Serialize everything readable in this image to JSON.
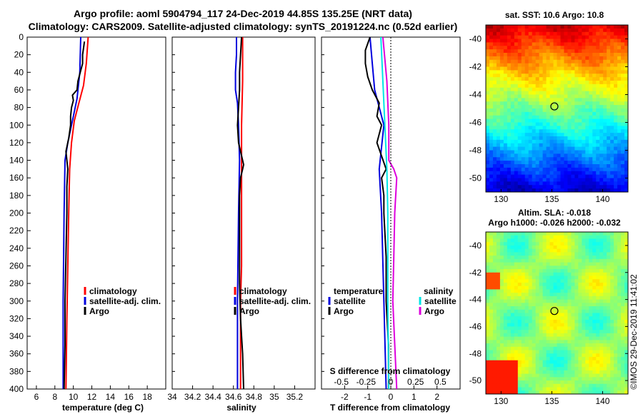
{
  "titles": {
    "line1": "Argo profile: aoml 5904794_117 24-Dec-2019 44.85S 135.25E (NRT data)",
    "line2": "Climatology: CARS2009. Satellite-adjusted climatology: synTS_20191224.nc (0.52d earlier)"
  },
  "timestamp": "©IMOS 29-Dec-2019 11:41:02",
  "colors": {
    "climatology": "#ff0000",
    "satellite": "#0000dd",
    "argo": "#000000",
    "sal_satellite": "#00e5e5",
    "sal_argo": "#dd00dd"
  },
  "chart_data": [
    {
      "type": "line",
      "id": "temperature",
      "xlabel": "temperature (deg C)",
      "ylabel": "depth",
      "xlim": [
        5,
        20
      ],
      "ylim": [
        400,
        0
      ],
      "xticks": [
        6,
        8,
        10,
        12,
        14,
        16,
        18
      ],
      "yticks": [
        0,
        20,
        40,
        60,
        80,
        100,
        120,
        140,
        160,
        180,
        200,
        220,
        240,
        260,
        280,
        300,
        320,
        340,
        360,
        380,
        400
      ],
      "legend": [
        "climatology",
        "satellite-adj. clim.",
        "Argo"
      ],
      "series": [
        {
          "name": "climatology",
          "color": "#ff0000",
          "depth": [
            0,
            30,
            55,
            75,
            95,
            120,
            150,
            200,
            260,
            320,
            400
          ],
          "values": [
            11.6,
            11.4,
            11.1,
            10.6,
            10.1,
            9.8,
            9.6,
            9.5,
            9.4,
            9.3,
            9.2
          ]
        },
        {
          "name": "satellite-adj. clim.",
          "color": "#0000dd",
          "depth": [
            0,
            40,
            70,
            95,
            120,
            140,
            200,
            300,
            400
          ],
          "values": [
            10.8,
            10.7,
            10.4,
            9.9,
            9.4,
            9.1,
            9.0,
            8.9,
            8.9
          ]
        },
        {
          "name": "Argo",
          "color": "#000000",
          "depth": [
            5,
            20,
            30,
            42,
            50,
            60,
            66,
            72,
            80,
            90,
            100,
            115,
            130,
            150,
            170,
            200,
            250,
            300,
            350,
            400
          ],
          "values": [
            11.2,
            11.0,
            11.0,
            10.7,
            10.5,
            10.4,
            9.9,
            10.0,
            9.8,
            9.7,
            9.7,
            9.5,
            9.2,
            9.4,
            9.3,
            9.3,
            9.2,
            9.1,
            9.1,
            9.0
          ]
        }
      ]
    },
    {
      "type": "line",
      "id": "salinity",
      "xlabel": "salinity",
      "xlim": [
        34.0,
        35.4
      ],
      "ylim": [
        400,
        0
      ],
      "xticks": [
        34,
        34.2,
        34.4,
        34.6,
        34.8,
        35,
        35.2
      ],
      "xticklabels": [
        "34",
        "34.2",
        "34.4",
        "34.6",
        "34.8",
        "35",
        "35.2"
      ],
      "legend": [
        "climatology",
        "satellite-adj. clim.",
        "Argo"
      ],
      "series": [
        {
          "name": "climatology",
          "color": "#ff0000",
          "depth": [
            0,
            50,
            100,
            150,
            200,
            260,
            300,
            350,
            400
          ],
          "values": [
            34.69,
            34.69,
            34.68,
            34.68,
            34.68,
            34.68,
            34.67,
            34.67,
            34.67
          ]
        },
        {
          "name": "satellite-adj. clim.",
          "color": "#0000dd",
          "depth": [
            0,
            20,
            40,
            60,
            75,
            100,
            140,
            200,
            300,
            400
          ],
          "values": [
            34.63,
            34.63,
            34.62,
            34.62,
            34.64,
            34.65,
            34.66,
            34.65,
            34.64,
            34.64
          ]
        },
        {
          "name": "Argo",
          "color": "#000000",
          "depth": [
            0,
            20,
            40,
            60,
            80,
            100,
            120,
            130,
            145,
            150,
            160,
            180,
            220,
            280,
            320,
            340,
            360,
            400
          ],
          "values": [
            34.68,
            34.67,
            34.66,
            34.66,
            34.65,
            34.64,
            34.65,
            34.67,
            34.7,
            34.69,
            34.67,
            34.66,
            34.66,
            34.66,
            34.67,
            34.68,
            34.69,
            34.7
          ]
        }
      ]
    },
    {
      "type": "line",
      "id": "difference",
      "xlabel": "T difference from climatology",
      "xlim": [
        -3,
        3
      ],
      "ylim": [
        400,
        0
      ],
      "xticks": [
        -2,
        -1,
        0,
        1,
        2
      ],
      "top_axis": {
        "label": "S difference from climatology",
        "ticks": [
          -0.5,
          -0.25,
          0,
          0.25,
          0.5
        ],
        "ticklabels": [
          "-0.5",
          "-0.25",
          "0",
          "0.25",
          "0.5"
        ],
        "range": [
          -0.7,
          0.7
        ]
      },
      "legend_temperature_title": "temperature",
      "legend_salinity_title": "salinity",
      "legend_temperature": [
        "satellite",
        "Argo"
      ],
      "legend_salinity": [
        "satellite",
        "Argo"
      ],
      "series": [
        {
          "name": "temperature satellite",
          "color": "#0000dd",
          "depth": [
            0,
            30,
            60,
            100,
            150,
            200,
            300,
            400
          ],
          "values": [
            -0.9,
            -0.8,
            -0.7,
            -0.3,
            -0.5,
            -0.4,
            -0.3,
            -0.2
          ]
        },
        {
          "name": "temperature Argo",
          "color": "#000000",
          "depth": [
            0,
            15,
            30,
            45,
            60,
            75,
            90,
            100,
            120,
            150,
            160,
            180,
            200,
            250,
            300,
            350,
            400
          ],
          "values": [
            -0.9,
            -1.1,
            -1.1,
            -1.0,
            -0.8,
            -0.5,
            -0.6,
            -0.4,
            -0.6,
            -0.2,
            -0.4,
            -0.3,
            -0.3,
            -0.2,
            -0.2,
            -0.1,
            -0.1
          ]
        },
        {
          "name": "salinity satellite",
          "color": "#00e5e5",
          "depth": [
            0,
            50,
            100,
            150,
            200,
            300,
            400
          ],
          "values": [
            -0.1,
            -0.08,
            -0.06,
            -0.04,
            -0.03,
            -0.03,
            -0.02
          ]
        },
        {
          "name": "salinity Argo",
          "color": "#dd00dd",
          "depth": [
            0,
            50,
            100,
            140,
            150,
            160,
            200,
            250,
            300,
            400
          ],
          "values": [
            -0.08,
            -0.04,
            -0.02,
            -0.02,
            0.03,
            0.06,
            0.04,
            0.03,
            0.02,
            0.06
          ]
        }
      ]
    },
    {
      "type": "heatmap",
      "id": "sst-map",
      "title": "sat. SST: 10.6 Argo: 10.8",
      "xlim": [
        128.5,
        142.5
      ],
      "ylim": [
        -51,
        -39
      ],
      "xticks": [
        130,
        135,
        140
      ],
      "yticks": [
        -40,
        -42,
        -44,
        -46,
        -48,
        -50
      ],
      "marker": {
        "lon": 135.25,
        "lat": -44.85
      }
    },
    {
      "type": "heatmap",
      "id": "sla-map",
      "title": "Altim. SLA: -0.018",
      "subtitle": "Argo h1000: -0.026 h2000: -0.032",
      "xlim": [
        128.5,
        142.5
      ],
      "ylim": [
        -51,
        -39
      ],
      "xticks": [
        130,
        135,
        140
      ],
      "yticks": [
        -40,
        -42,
        -44,
        -46,
        -48,
        -50
      ],
      "marker": {
        "lon": 135.25,
        "lat": -44.85
      }
    }
  ]
}
